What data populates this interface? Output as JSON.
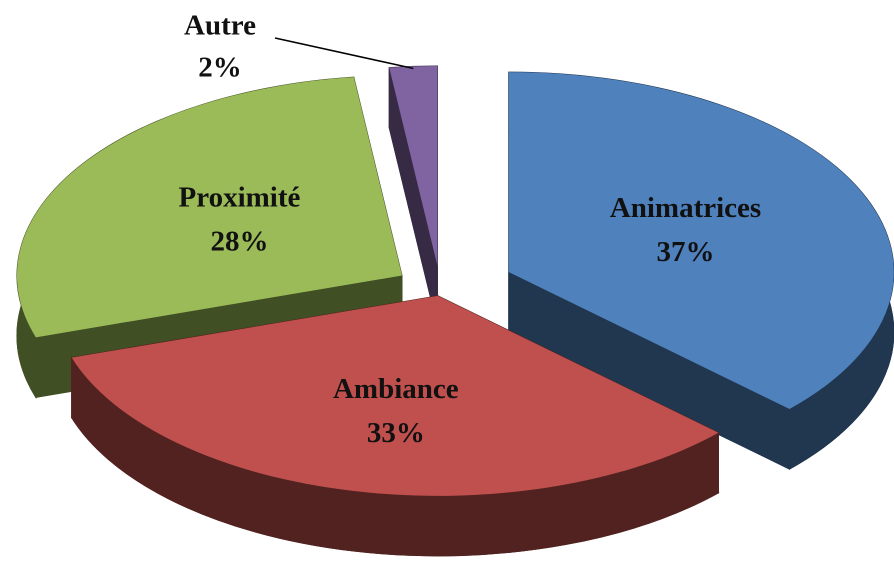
{
  "chart_data": {
    "type": "pie",
    "categories": [
      "Animatrices",
      "Ambiance",
      "Proximité",
      "Autre"
    ],
    "values": [
      37,
      33,
      28,
      2
    ],
    "value_labels": [
      "37%",
      "33%",
      "28%",
      "2%"
    ],
    "colors": [
      "#4f81bd",
      "#c0504d",
      "#9bbb59",
      "#8064a2"
    ]
  }
}
